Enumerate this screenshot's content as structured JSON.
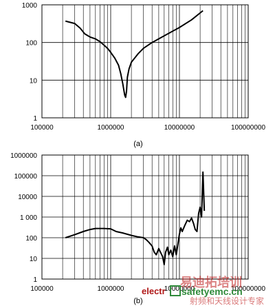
{
  "chart_data": [
    {
      "type": "line",
      "caption": "(a)",
      "xscale": "log",
      "yscale": "log",
      "xlim": [
        100000,
        100000000
      ],
      "ylim": [
        1,
        1000
      ],
      "xticks": [
        "100000",
        "1000000",
        "10000000",
        "100000000"
      ],
      "yticks": [
        "1",
        "10",
        "100",
        "1000"
      ],
      "grid": true,
      "series": [
        {
          "points": [
            [
              220000,
              370
            ],
            [
              300000,
              320
            ],
            [
              360000,
              240
            ],
            [
              420000,
              170
            ],
            [
              500000,
              140
            ],
            [
              600000,
              125
            ],
            [
              700000,
              105
            ],
            [
              800000,
              85
            ],
            [
              900000,
              70
            ],
            [
              1000000,
              55
            ],
            [
              1150000,
              38
            ],
            [
              1300000,
              25
            ],
            [
              1400000,
              15
            ],
            [
              1500000,
              8
            ],
            [
              1600000,
              4
            ],
            [
              1650000,
              3.5
            ],
            [
              1700000,
              5
            ],
            [
              1750000,
              12
            ],
            [
              1850000,
              20
            ],
            [
              2000000,
              30
            ],
            [
              2500000,
              50
            ],
            [
              3000000,
              70
            ],
            [
              4000000,
              100
            ],
            [
              6000000,
              150
            ],
            [
              10000000,
              250
            ],
            [
              15000000,
              400
            ],
            [
              22000000,
              700
            ]
          ]
        }
      ]
    },
    {
      "type": "line",
      "caption": "(b)",
      "xscale": "log",
      "yscale": "log",
      "xlim": [
        100000,
        100000000
      ],
      "ylim": [
        1,
        1000000
      ],
      "xticks": [
        "100000",
        "1000000",
        "10000000",
        "100000000"
      ],
      "yticks": [
        "1",
        "10",
        "100",
        "1 000",
        "10000",
        "100000",
        "1000000"
      ],
      "grid": true,
      "series": [
        {
          "points": [
            [
              220000,
              100
            ],
            [
              300000,
              140
            ],
            [
              400000,
              200
            ],
            [
              500000,
              250
            ],
            [
              600000,
              280
            ],
            [
              800000,
              280
            ],
            [
              1000000,
              270
            ],
            [
              1200000,
              200
            ],
            [
              1500000,
              170
            ],
            [
              2000000,
              130
            ],
            [
              2500000,
              110
            ],
            [
              3000000,
              100
            ],
            [
              3300000,
              80
            ],
            [
              3600000,
              60
            ],
            [
              4000000,
              40
            ],
            [
              4300000,
              20
            ],
            [
              4600000,
              15
            ],
            [
              5000000,
              30
            ],
            [
              5300000,
              20
            ],
            [
              5700000,
              12
            ],
            [
              6000000,
              5
            ],
            [
              6300000,
              20
            ],
            [
              6700000,
              35
            ],
            [
              7000000,
              15
            ],
            [
              7500000,
              25
            ],
            [
              8000000,
              12
            ],
            [
              8500000,
              40
            ],
            [
              9000000,
              15
            ],
            [
              9500000,
              50
            ],
            [
              10000000,
              150
            ],
            [
              10500000,
              300
            ],
            [
              11000000,
              200
            ],
            [
              12000000,
              400
            ],
            [
              13000000,
              700
            ],
            [
              14000000,
              600
            ],
            [
              15000000,
              900
            ],
            [
              16000000,
              500
            ],
            [
              17000000,
              250
            ],
            [
              18000000,
              200
            ],
            [
              19000000,
              1500
            ],
            [
              20000000,
              3000
            ],
            [
              21000000,
              1000
            ],
            [
              22000000,
              150000
            ],
            [
              23000000,
              2000
            ]
          ]
        }
      ]
    }
  ],
  "watermark": {
    "text_red": "electr",
    "text_green": "safetyemc.cn",
    "text_cn": "易迪拓培训",
    "text_cn_sub": "射频和天线设计专家"
  }
}
